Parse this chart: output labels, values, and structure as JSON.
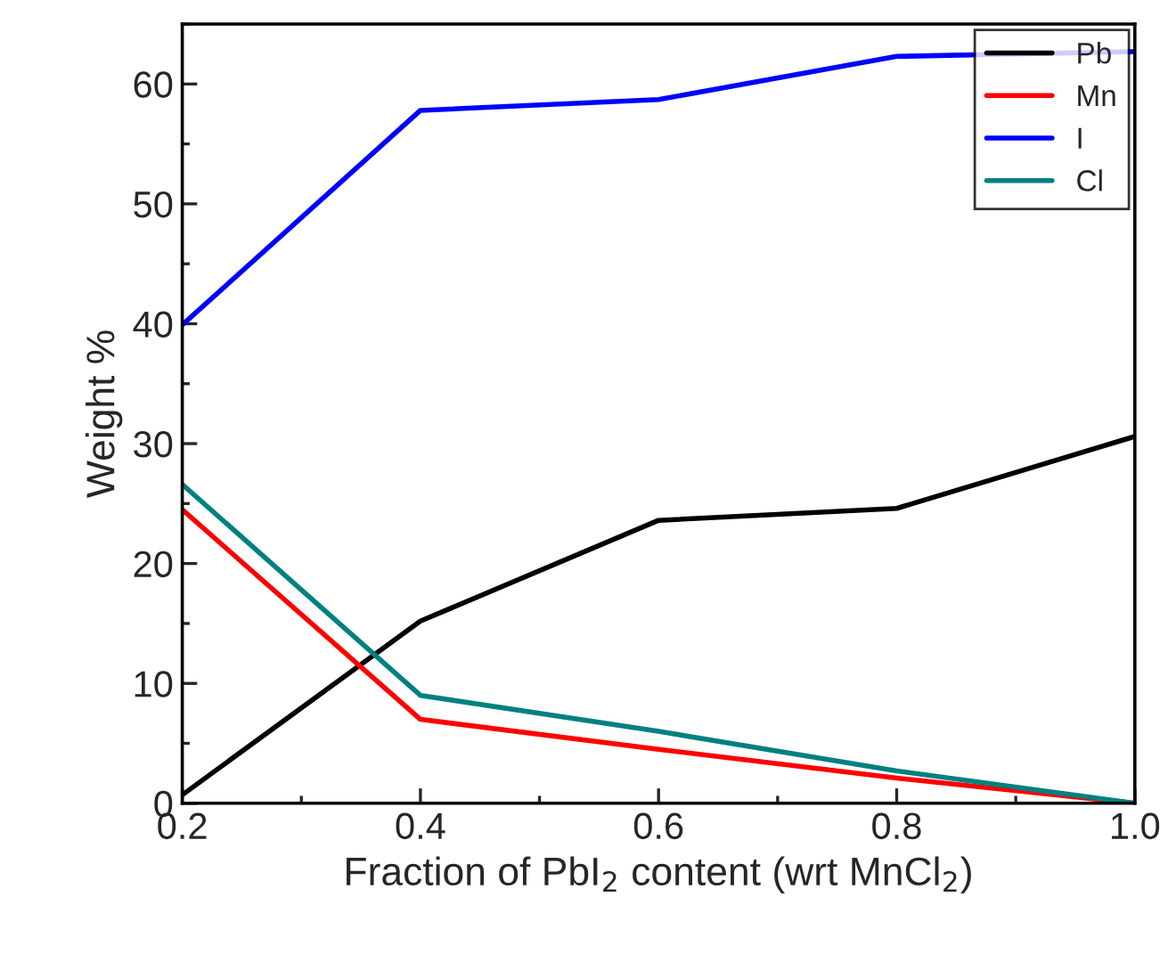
{
  "chart_data": {
    "type": "line",
    "xlabel": "Fraction of PbI$_{2}$ content (wrt MnCl$_{2}$)",
    "ylabel": "Weight %",
    "x": [
      0.2,
      0.4,
      0.6,
      0.8,
      1.0
    ],
    "series": [
      {
        "name": "Pb",
        "color": "#000000",
        "values": [
          0.7,
          15.2,
          23.6,
          24.6,
          30.6
        ]
      },
      {
        "name": "Mn",
        "color": "#ff0000",
        "values": [
          24.5,
          7.0,
          4.5,
          2.1,
          0.0
        ]
      },
      {
        "name": "I",
        "color": "#0000ff",
        "values": [
          39.9,
          57.8,
          58.7,
          62.3,
          62.7
        ]
      },
      {
        "name": "Cl",
        "color": "#008080",
        "values": [
          26.6,
          9.0,
          6.0,
          2.7,
          0.0
        ]
      }
    ],
    "xlim": [
      0.2,
      1.0
    ],
    "xticks": [
      {
        "value": 0.2,
        "label": "0.2"
      },
      {
        "value": 0.4,
        "label": "0.4"
      },
      {
        "value": 0.6,
        "label": "0.6"
      },
      {
        "value": 0.8,
        "label": "0.8"
      },
      {
        "value": 1.0,
        "label": "1.0"
      }
    ],
    "ylim": [
      0,
      65
    ],
    "yticks": [
      0,
      10,
      20,
      30,
      40,
      50,
      60
    ],
    "grid": false,
    "legend": "top right",
    "marker": "none",
    "line_style": "solid"
  }
}
